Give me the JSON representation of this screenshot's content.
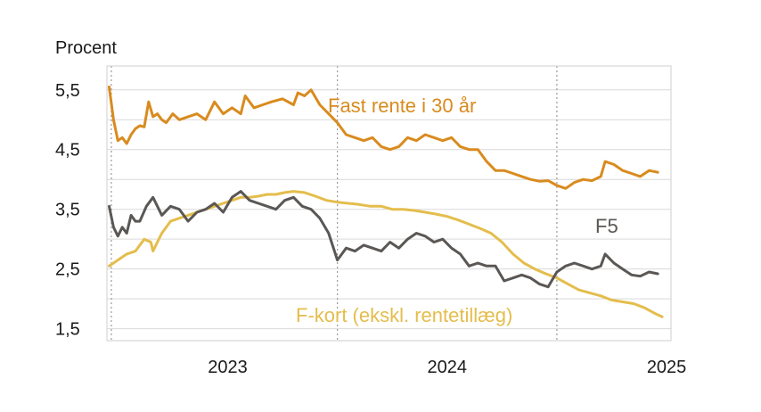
{
  "chart_data": {
    "type": "line",
    "ylabel": "Procent",
    "xlabel": "",
    "ylim": [
      1.3,
      5.9
    ],
    "xlim": [
      2022.45,
      2025.02
    ],
    "y_ticks": [
      {
        "value": 1.5,
        "label": "1,5"
      },
      {
        "value": 2.5,
        "label": "2,5"
      },
      {
        "value": 3.5,
        "label": "3,5"
      },
      {
        "value": 4.5,
        "label": "4,5"
      },
      {
        "value": 5.5,
        "label": "5,5"
      }
    ],
    "y_gridlines": [
      1.5,
      2.0,
      2.5,
      3.0,
      3.5,
      4.0,
      4.5,
      5.0,
      5.5
    ],
    "x_ticks": [
      {
        "value": 2023.0,
        "label": "2023"
      },
      {
        "value": 2024.0,
        "label": "2024"
      },
      {
        "value": 2025.0,
        "label": "2025"
      }
    ],
    "x_dotted_lines": [
      2022.47,
      2023.5,
      2024.5
    ],
    "grid": true,
    "legend": "inline labels",
    "series": [
      {
        "name": "Fast rente i 30 år",
        "color": "#d98b1e",
        "x": [
          2022.46,
          2022.48,
          2022.5,
          2022.52,
          2022.54,
          2022.56,
          2022.58,
          2022.6,
          2022.62,
          2022.64,
          2022.66,
          2022.68,
          2022.7,
          2022.72,
          2022.75,
          2022.78,
          2022.82,
          2022.86,
          2022.9,
          2022.94,
          2022.98,
          2023.02,
          2023.06,
          2023.08,
          2023.12,
          2023.16,
          2023.2,
          2023.25,
          2023.3,
          2023.32,
          2023.35,
          2023.38,
          2023.42,
          2023.46,
          2023.5,
          2023.54,
          2023.58,
          2023.62,
          2023.66,
          2023.7,
          2023.74,
          2023.78,
          2023.82,
          2023.86,
          2023.9,
          2023.94,
          2023.98,
          2024.02,
          2024.06,
          2024.1,
          2024.14,
          2024.18,
          2024.22,
          2024.26,
          2024.3,
          2024.34,
          2024.38,
          2024.42,
          2024.46,
          2024.5,
          2024.54,
          2024.58,
          2024.62,
          2024.66,
          2024.7,
          2024.72,
          2024.76,
          2024.8,
          2024.84,
          2024.88,
          2024.92,
          2024.96
        ],
        "y": [
          5.55,
          5.0,
          4.65,
          4.7,
          4.6,
          4.75,
          4.85,
          4.9,
          4.88,
          5.3,
          5.05,
          5.1,
          5.0,
          4.95,
          5.1,
          5.0,
          5.05,
          5.1,
          5.0,
          5.3,
          5.1,
          5.2,
          5.1,
          5.4,
          5.2,
          5.25,
          5.3,
          5.35,
          5.25,
          5.45,
          5.4,
          5.5,
          5.25,
          5.1,
          4.95,
          4.75,
          4.7,
          4.65,
          4.7,
          4.55,
          4.5,
          4.55,
          4.7,
          4.65,
          4.75,
          4.7,
          4.65,
          4.7,
          4.55,
          4.5,
          4.5,
          4.3,
          4.15,
          4.15,
          4.1,
          4.05,
          4.0,
          3.97,
          3.98,
          3.9,
          3.85,
          3.95,
          4.0,
          3.98,
          4.05,
          4.3,
          4.25,
          4.15,
          4.1,
          4.05,
          4.15,
          4.12
        ]
      },
      {
        "name": "F5",
        "color": "#5a5755",
        "x": [
          2022.46,
          2022.48,
          2022.5,
          2022.52,
          2022.54,
          2022.56,
          2022.58,
          2022.6,
          2022.63,
          2022.66,
          2022.7,
          2022.74,
          2022.78,
          2022.82,
          2022.86,
          2022.9,
          2022.94,
          2022.98,
          2023.02,
          2023.06,
          2023.1,
          2023.14,
          2023.18,
          2023.22,
          2023.26,
          2023.3,
          2023.34,
          2023.38,
          2023.42,
          2023.46,
          2023.5,
          2023.54,
          2023.58,
          2023.62,
          2023.66,
          2023.7,
          2023.74,
          2023.78,
          2023.82,
          2023.86,
          2023.9,
          2023.94,
          2023.98,
          2024.02,
          2024.06,
          2024.1,
          2024.14,
          2024.18,
          2024.22,
          2024.26,
          2024.3,
          2024.34,
          2024.38,
          2024.42,
          2024.46,
          2024.5,
          2024.54,
          2024.58,
          2024.62,
          2024.66,
          2024.7,
          2024.72,
          2024.76,
          2024.8,
          2024.84,
          2024.88,
          2024.92,
          2024.96
        ],
        "y": [
          3.55,
          3.2,
          3.05,
          3.2,
          3.1,
          3.4,
          3.3,
          3.3,
          3.55,
          3.7,
          3.4,
          3.55,
          3.5,
          3.3,
          3.45,
          3.5,
          3.6,
          3.45,
          3.7,
          3.8,
          3.65,
          3.6,
          3.55,
          3.5,
          3.65,
          3.7,
          3.55,
          3.5,
          3.35,
          3.1,
          2.65,
          2.85,
          2.8,
          2.9,
          2.85,
          2.8,
          2.95,
          2.85,
          3.0,
          3.1,
          3.05,
          2.95,
          3.0,
          2.85,
          2.75,
          2.55,
          2.6,
          2.55,
          2.55,
          2.3,
          2.35,
          2.4,
          2.35,
          2.25,
          2.2,
          2.45,
          2.55,
          2.6,
          2.55,
          2.5,
          2.55,
          2.75,
          2.6,
          2.5,
          2.4,
          2.38,
          2.45,
          2.42
        ]
      },
      {
        "name": "F-kort (ekskl. rentetillæg)",
        "color": "#e4bd4c",
        "x": [
          2022.46,
          2022.5,
          2022.54,
          2022.58,
          2022.62,
          2022.65,
          2022.66,
          2022.68,
          2022.7,
          2022.74,
          2022.78,
          2022.82,
          2022.86,
          2022.9,
          2022.94,
          2022.98,
          2023.02,
          2023.06,
          2023.1,
          2023.14,
          2023.18,
          2023.22,
          2023.26,
          2023.3,
          2023.35,
          2023.4,
          2023.45,
          2023.5,
          2023.55,
          2023.6,
          2023.65,
          2023.7,
          2023.75,
          2023.8,
          2023.85,
          2023.9,
          2023.95,
          2024.0,
          2024.05,
          2024.1,
          2024.15,
          2024.2,
          2024.25,
          2024.3,
          2024.35,
          2024.4,
          2024.45,
          2024.5,
          2024.55,
          2024.6,
          2024.65,
          2024.7,
          2024.75,
          2024.8,
          2024.85,
          2024.9,
          2024.95,
          2024.98
        ],
        "y": [
          2.55,
          2.65,
          2.75,
          2.8,
          3.0,
          2.95,
          2.8,
          2.95,
          3.1,
          3.3,
          3.35,
          3.4,
          3.45,
          3.5,
          3.55,
          3.6,
          3.65,
          3.7,
          3.7,
          3.72,
          3.75,
          3.75,
          3.78,
          3.8,
          3.78,
          3.72,
          3.65,
          3.62,
          3.6,
          3.58,
          3.55,
          3.55,
          3.5,
          3.5,
          3.48,
          3.45,
          3.42,
          3.38,
          3.32,
          3.25,
          3.18,
          3.1,
          2.95,
          2.75,
          2.6,
          2.5,
          2.42,
          2.35,
          2.25,
          2.15,
          2.1,
          2.05,
          1.98,
          1.95,
          1.92,
          1.85,
          1.75,
          1.7
        ]
      }
    ]
  },
  "labels": {
    "ylabel": "Procent",
    "series_fast": "Fast rente i 30 år",
    "series_f5": "F5",
    "series_fkort": "F-kort (ekskl. rentetillæg)"
  }
}
